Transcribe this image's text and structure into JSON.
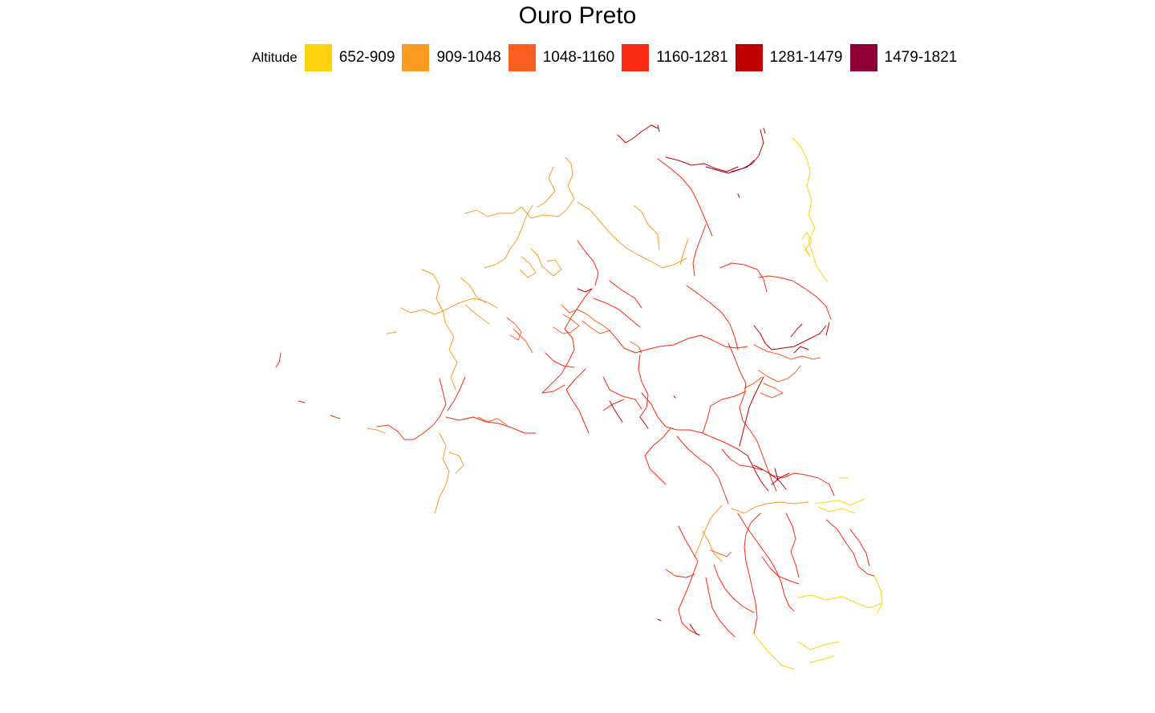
{
  "title": "Ouro Preto",
  "legend": {
    "title": "Altitude",
    "items": [
      {
        "label": "652-909",
        "color": "#FFD30B"
      },
      {
        "label": "909-1048",
        "color": "#FB9B21"
      },
      {
        "label": "1048-1160",
        "color": "#FB5F1F"
      },
      {
        "label": "1160-1281",
        "color": "#FB2A12"
      },
      {
        "label": "1281-1479",
        "color": "#C00000"
      },
      {
        "label": "1479-1821",
        "color": "#8E0035"
      }
    ]
  }
}
